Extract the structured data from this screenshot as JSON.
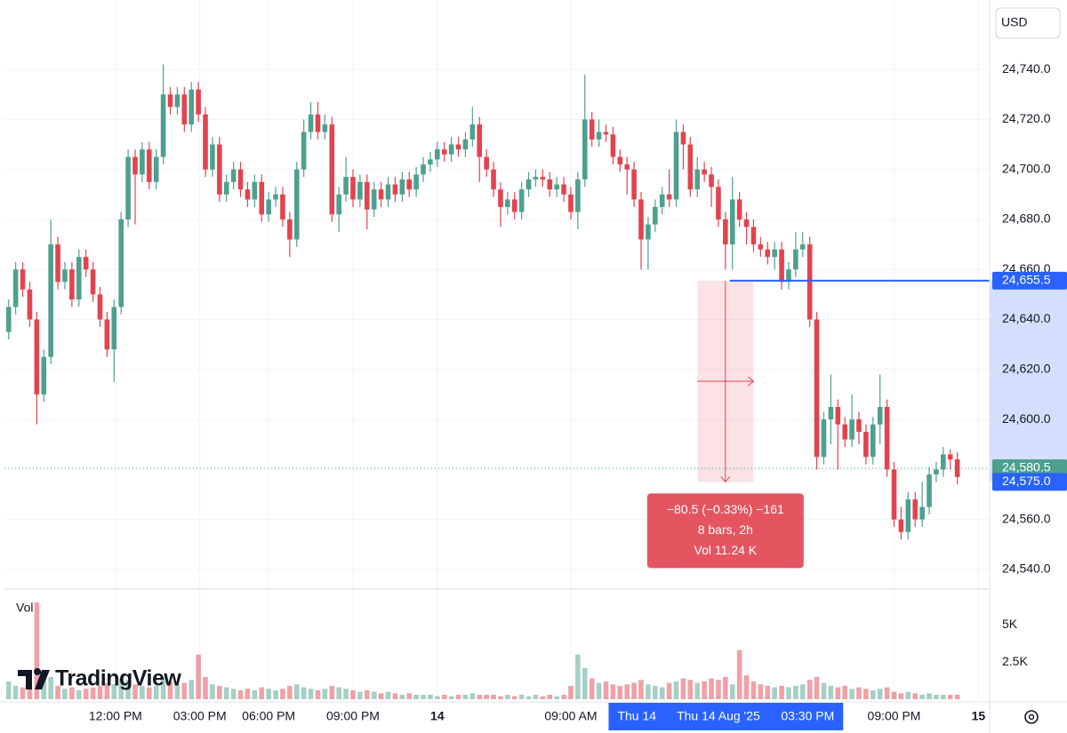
{
  "currency": "USD",
  "watermark": "TradingView",
  "chart_data": {
    "type": "candlestick",
    "volume_label": "Vol",
    "up_color": "#4ea08e",
    "down_color": "#e2434f",
    "xlim": [
      -0.6,
      139.6
    ],
    "ylim": [
      24532.5,
      24766
    ],
    "grid": true,
    "yticks": [
      {
        "value": 24540,
        "label": "24,540.0"
      },
      {
        "value": 24560,
        "label": "24,560.0"
      },
      {
        "value": 24580,
        "label": "24,580.0"
      },
      {
        "value": 24600,
        "label": "24,600.0"
      },
      {
        "value": 24620,
        "label": "24,620.0"
      },
      {
        "value": 24640,
        "label": "24,640.0"
      },
      {
        "value": 24660,
        "label": "24,660.0"
      },
      {
        "value": 24680,
        "label": "24,680.0"
      },
      {
        "value": 24700,
        "label": "24,700.0"
      },
      {
        "value": 24720,
        "label": "24,720.0"
      },
      {
        "value": 24740,
        "label": "24,740.0"
      }
    ],
    "xticks": [
      {
        "value": 15.2,
        "label": "12:00 PM"
      },
      {
        "value": 27.2,
        "label": "03:00 PM"
      },
      {
        "value": 37,
        "label": "06:00 PM"
      },
      {
        "value": 49,
        "label": "09:00 PM"
      },
      {
        "value": 61,
        "label": "14",
        "bold": true
      },
      {
        "value": 80,
        "label": "09:00 AM"
      },
      {
        "value": 126,
        "label": "09:00 PM"
      },
      {
        "value": 138,
        "label": "15",
        "bold": true
      }
    ],
    "x_highlight_labels": [
      {
        "value": 89.4,
        "label": "Thu 14"
      },
      {
        "value": 101,
        "label": "Thu 14 Aug '25"
      },
      {
        "value": 113.7,
        "label": "03:30 PM"
      }
    ],
    "vol_ylim": [
      0,
      6800
    ],
    "vol_yticks": [
      {
        "value": 2500,
        "label": "2.5K"
      },
      {
        "value": 5000,
        "label": "5K"
      }
    ],
    "open": [
      24635,
      24645,
      24660,
      24652,
      24640,
      24610,
      24625,
      24670,
      24655,
      24660,
      24648,
      24665,
      24660,
      24650,
      24640,
      24628,
      24645,
      24680,
      24705,
      24698,
      24708,
      24695,
      24705,
      24730,
      24725,
      24730,
      24718,
      24732,
      24722,
      24700,
      24710,
      24690,
      24695,
      24700,
      24692,
      24688,
      24695,
      24682,
      24688,
      24690,
      24680,
      24672,
      24700,
      24715,
      24722,
      24715,
      24718,
      24682,
      24690,
      24697,
      24688,
      24695,
      24684,
      24692,
      24688,
      24694,
      24690,
      24696,
      24692,
      24698,
      24702,
      24704,
      24708,
      24706,
      24710,
      24708,
      24712,
      24718,
      24705,
      24700,
      24692,
      24685,
      24688,
      24683,
      24692,
      24696,
      24697,
      24696,
      24692,
      24694,
      24690,
      24683,
      24696,
      24720,
      24712,
      24715,
      24714,
      24705,
      24702,
      24700,
      24688,
      24672,
      24678,
      24685,
      24690,
      24688,
      24715,
      24710,
      24692,
      24700,
      24698,
      24693,
      24680,
      24670,
      24688,
      24680,
      24677,
      24670,
      24668,
      24665,
      24668,
      24655,
      24660,
      24668,
      24670,
      24640,
      24585,
      24600,
      24605,
      24598,
      24592,
      24600,
      24595,
      24585,
      24598,
      24605,
      24580,
      24560,
      24555,
      24568,
      24560,
      24565,
      24578,
      24580,
      24586,
      24584
    ],
    "high": [
      24648,
      24663,
      24663,
      24655,
      24643,
      24628,
      24680,
      24673,
      24663,
      24663,
      24668,
      24668,
      24663,
      24653,
      24643,
      24648,
      24683,
      24708,
      24708,
      24711,
      24711,
      24708,
      24742,
      24733,
      24733,
      24733,
      24735,
      24735,
      24725,
      24713,
      24713,
      24698,
      24703,
      24703,
      24695,
      24698,
      24698,
      24691,
      24693,
      24693,
      24683,
      24703,
      24720,
      24727,
      24727,
      24722,
      24721,
      24693,
      24705,
      24700,
      24698,
      24698,
      24695,
      24695,
      24697,
      24697,
      24699,
      24699,
      24701,
      24705,
      24707,
      24711,
      24711,
      24713,
      24713,
      24715,
      24725,
      24721,
      24708,
      24703,
      24695,
      24691,
      24691,
      24695,
      24699,
      24700,
      24700,
      24699,
      24697,
      24697,
      24693,
      24699,
      24738,
      24723,
      24720,
      24718,
      24717,
      24708,
      24705,
      24703,
      24691,
      24681,
      24688,
      24693,
      24700,
      24720,
      24718,
      24713,
      24705,
      24703,
      24701,
      24696,
      24683,
      24697,
      24691,
      24683,
      24680,
      24673,
      24671,
      24671,
      24671,
      24663,
      24675,
      24675,
      24673,
      24643,
      24603,
      24618,
      24608,
      24601,
      24610,
      24603,
      24598,
      24601,
      24618,
      24608,
      24583,
      24565,
      24571,
      24571,
      24575,
      24581,
      24583,
      24589,
      24588,
      24587
    ],
    "low": [
      24632,
      24642,
      24649,
      24637,
      24598,
      24607,
      24622,
      24652,
      24652,
      24645,
      24645,
      24657,
      24647,
      24637,
      24625,
      24615,
      24642,
      24677,
      24678,
      24695,
      24692,
      24692,
      24702,
      24722,
      24722,
      24715,
      24715,
      24719,
      24697,
      24697,
      24687,
      24687,
      24692,
      24689,
      24685,
      24685,
      24679,
      24679,
      24685,
      24677,
      24665,
      24669,
      24697,
      24712,
      24712,
      24712,
      24679,
      24675,
      24687,
      24685,
      24685,
      24676,
      24681,
      24685,
      24685,
      24687,
      24687,
      24689,
      24689,
      24695,
      24699,
      24701,
      24703,
      24703,
      24705,
      24705,
      24709,
      24695,
      24697,
      24689,
      24677,
      24682,
      24680,
      24680,
      24689,
      24693,
      24693,
      24689,
      24689,
      24687,
      24680,
      24676,
      24693,
      24709,
      24709,
      24711,
      24702,
      24699,
      24690,
      24685,
      24660,
      24660,
      24675,
      24682,
      24685,
      24685,
      24700,
      24689,
      24689,
      24695,
      24685,
      24677,
      24660,
      24660,
      24677,
      24670,
      24667,
      24665,
      24662,
      24660,
      24652,
      24652,
      24657,
      24665,
      24637,
      24580,
      24582,
      24590,
      24580,
      24589,
      24589,
      24590,
      24582,
      24582,
      24590,
      24577,
      24557,
      24552,
      24552,
      24557,
      24557,
      24562,
      24575,
      24577,
      24580,
      24574
    ],
    "close": [
      24645,
      24660,
      24652,
      24640,
      24610,
      24625,
      24670,
      24655,
      24660,
      24648,
      24665,
      24660,
      24650,
      24640,
      24628,
      24645,
      24680,
      24705,
      24698,
      24708,
      24695,
      24705,
      24730,
      24725,
      24730,
      24718,
      24732,
      24722,
      24700,
      24710,
      24690,
      24695,
      24700,
      24692,
      24688,
      24695,
      24682,
      24688,
      24690,
      24680,
      24672,
      24700,
      24715,
      24722,
      24715,
      24718,
      24682,
      24690,
      24697,
      24688,
      24695,
      24684,
      24692,
      24688,
      24694,
      24690,
      24696,
      24692,
      24698,
      24702,
      24704,
      24708,
      24706,
      24710,
      24708,
      24712,
      24718,
      24705,
      24700,
      24692,
      24685,
      24688,
      24683,
      24692,
      24696,
      24697,
      24696,
      24692,
      24694,
      24690,
      24683,
      24696,
      24720,
      24712,
      24715,
      24714,
      24705,
      24702,
      24700,
      24688,
      24672,
      24678,
      24685,
      24690,
      24688,
      24715,
      24710,
      24692,
      24700,
      24698,
      24693,
      24680,
      24670,
      24688,
      24680,
      24677,
      24670,
      24668,
      24665,
      24668,
      24655,
      24660,
      24668,
      24670,
      24640,
      24585,
      24600,
      24605,
      24598,
      24592,
      24600,
      24595,
      24585,
      24598,
      24605,
      24580,
      24560,
      24555,
      24568,
      24560,
      24565,
      24578,
      24580,
      24586,
      24584,
      24577
    ],
    "volume": [
      1200,
      900,
      800,
      1000,
      6500,
      1800,
      1500,
      900,
      700,
      800,
      600,
      700,
      800,
      900,
      1100,
      1000,
      1400,
      1300,
      1000,
      900,
      800,
      900,
      1500,
      1200,
      1000,
      1100,
      1300,
      3000,
      1500,
      1000,
      900,
      800,
      700,
      600,
      700,
      600,
      800,
      700,
      600,
      700,
      900,
      1000,
      800,
      700,
      600,
      700,
      900,
      800,
      700,
      600,
      500,
      600,
      500,
      400,
      500,
      400,
      300,
      400,
      300,
      300,
      300,
      200,
      300,
      200,
      300,
      300,
      400,
      300,
      300,
      300,
      200,
      300,
      200,
      300,
      200,
      300,
      200,
      300,
      200,
      300,
      900,
      3000,
      2100,
      1400,
      1100,
      1200,
      1000,
      900,
      1000,
      1100,
      1300,
      1000,
      900,
      800,
      1100,
      1200,
      1400,
      1300,
      1100,
      1200,
      1400,
      1300,
      1500,
      1000,
      3300,
      1600,
      1200,
      1000,
      900,
      800,
      900,
      800,
      900,
      1000,
      1300,
      1500,
      1100,
      900,
      800,
      900,
      700,
      800,
      700,
      600,
      700,
      800,
      500,
      400,
      500,
      400,
      300,
      400,
      300,
      300,
      300,
      300
    ],
    "price_lines": [
      {
        "value": 24655.5,
        "label": "24,655.5",
        "color": "#2962ff",
        "from": 102.6
      },
      {
        "value": 24580.5,
        "label": "24,580.5",
        "color": "#4ea08e",
        "dotted": true
      },
      {
        "value": 24575,
        "label": "24,575.0",
        "color": "#2962ff",
        "line": false
      }
    ],
    "measure": {
      "x": [
        98,
        106
      ],
      "y": [
        24655.5,
        24575
      ],
      "color": "#e2434f",
      "lines": [
        "−80.5 (−0.33%) −161",
        "8 bars, 2h",
        "Vol 11.24 K"
      ]
    }
  }
}
